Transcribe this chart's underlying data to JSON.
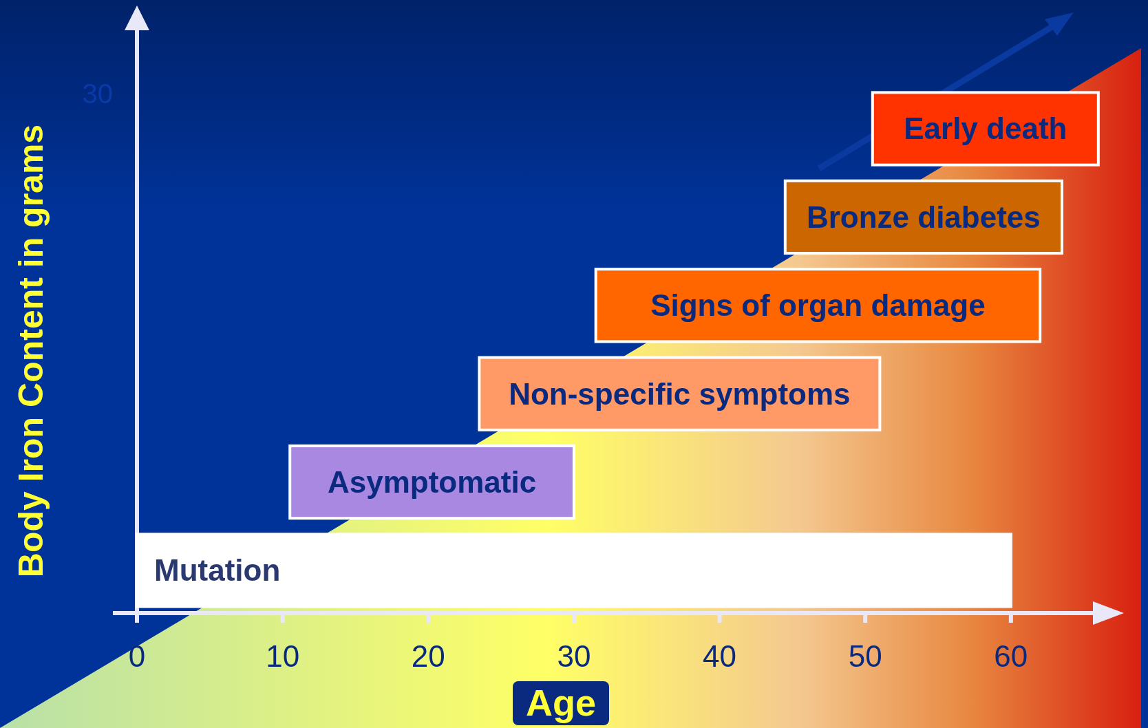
{
  "chart_data": {
    "type": "bar",
    "orientation": "horizontal",
    "categories": [
      "Early death",
      "Bronze diabetes",
      "Signs of organ damage",
      "Non-specific symptoms",
      "Asymptomatic",
      "Mutation"
    ],
    "base": [
      50.5,
      44.5,
      31.5,
      23.5,
      10.5,
      0
    ],
    "values": [
      15.5,
      19,
      30.5,
      27.5,
      19.5,
      60
    ],
    "colors": [
      "#ff3300",
      "#cc6600",
      "#ff6600",
      "#ff9966",
      "#a888e0",
      "#ffffff"
    ],
    "xlim": [
      0,
      67
    ],
    "xticks": [
      0,
      10,
      20,
      30,
      40,
      50,
      60
    ],
    "xlabel": "Age",
    "ylabel": "Body Iron Content in grams",
    "annotations": [
      "30"
    ]
  }
}
